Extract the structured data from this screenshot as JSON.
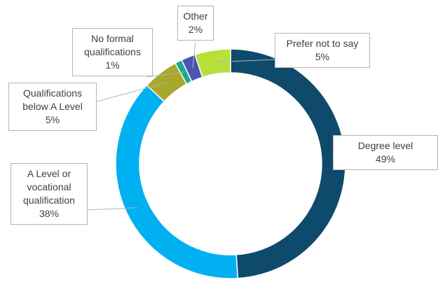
{
  "chart_data": {
    "type": "donut",
    "categories": [
      "Degree level",
      "A Level or vocational qualification",
      "Qualifications below A Level",
      "No formal qualifications",
      "Other",
      "Prefer not to say"
    ],
    "values": [
      49,
      38,
      5,
      1,
      2,
      5
    ],
    "value_labels": [
      "49%",
      "38%",
      "5%",
      "1%",
      "2%",
      "5%"
    ],
    "colors": [
      "#0e4a6b",
      "#00b0f0",
      "#a8a82c",
      "#1aab8c",
      "#4a56b0",
      "#b7e03a"
    ]
  }
}
